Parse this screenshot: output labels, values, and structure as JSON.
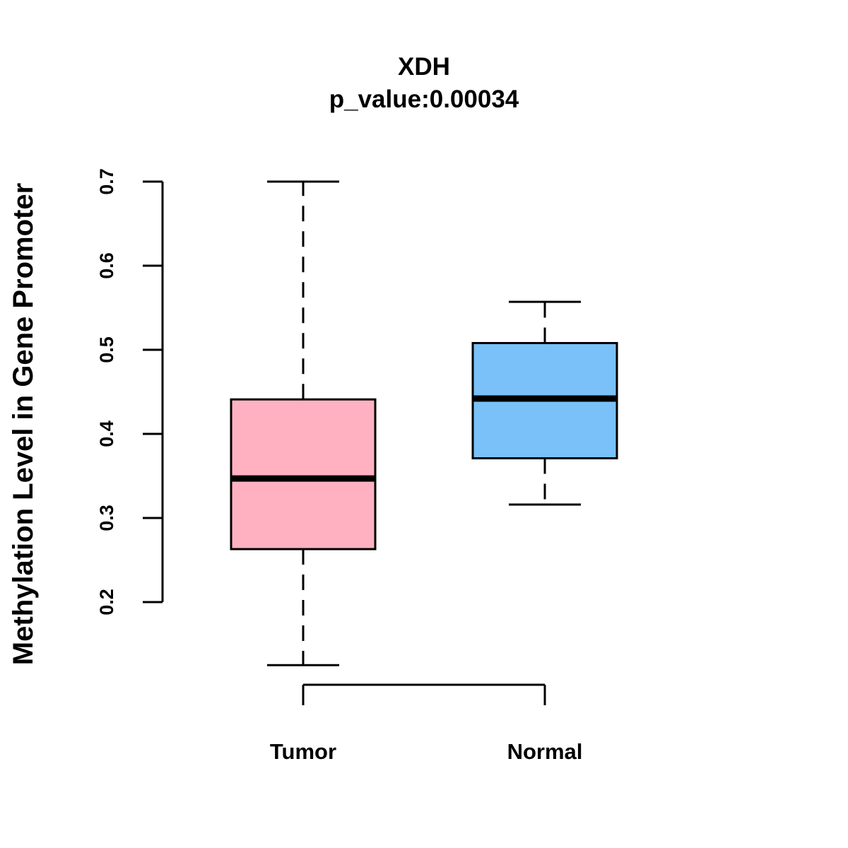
{
  "chart_data": {
    "type": "boxplot",
    "title": "XDH",
    "subtitle": "p_value:0.00034",
    "xlabel": "",
    "ylabel": "Methylation Level in Gene Promoter",
    "ylim": [
      0.2,
      0.7
    ],
    "yticks": [
      0.2,
      0.3,
      0.4,
      0.5,
      0.6,
      0.7
    ],
    "ytick_labels": [
      "0.2",
      "0.3",
      "0.4",
      "0.5",
      "0.6",
      "0.7"
    ],
    "categories": [
      "Tumor",
      "Normal"
    ],
    "series": [
      {
        "name": "Tumor",
        "color": "#FFB1C1",
        "whisker_low": 0.125,
        "q1": 0.263,
        "median": 0.347,
        "q3": 0.441,
        "whisker_high": 0.7
      },
      {
        "name": "Normal",
        "color": "#79C1F8",
        "whisker_low": 0.316,
        "q1": 0.371,
        "median": 0.442,
        "q3": 0.508,
        "whisker_high": 0.557
      }
    ],
    "grid": false,
    "legend": "none"
  }
}
